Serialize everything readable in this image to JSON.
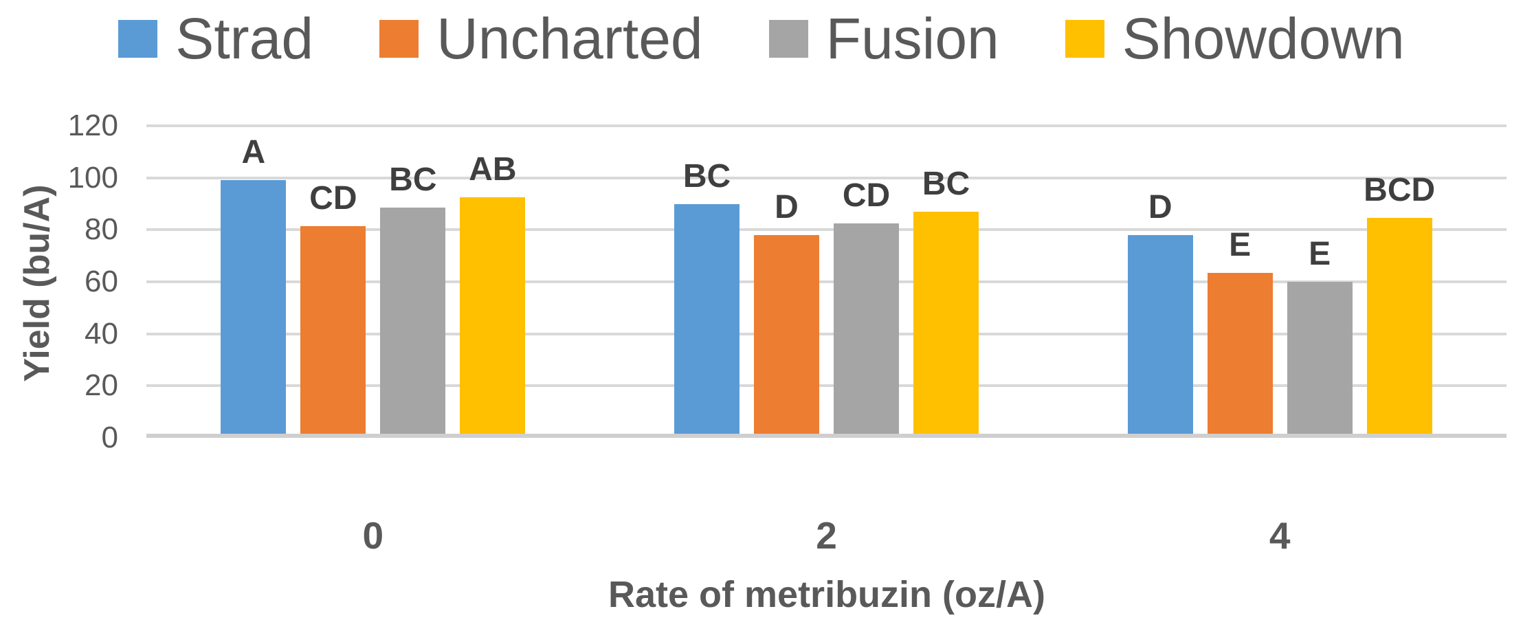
{
  "chart_data": {
    "type": "bar",
    "title": "",
    "categories": [
      "0",
      "2",
      "4"
    ],
    "series": [
      {
        "name": "Strad",
        "color": "#5B9BD5",
        "values": [
          99,
          90,
          78
        ],
        "bar_labels": [
          "A",
          "BC",
          "D"
        ]
      },
      {
        "name": "Uncharted",
        "color": "#ED7D31",
        "values": [
          81.5,
          78,
          63.5
        ],
        "bar_labels": [
          "CD",
          "D",
          "E"
        ]
      },
      {
        "name": "Fusion",
        "color": "#A5A5A5",
        "values": [
          88.5,
          82.5,
          60
        ],
        "bar_labels": [
          "BC",
          "CD",
          "E"
        ]
      },
      {
        "name": "Showdown",
        "color": "#FFC000",
        "values": [
          92.5,
          87,
          84.5
        ],
        "bar_labels": [
          "AB",
          "BC",
          "BCD"
        ]
      }
    ],
    "xlabel": "Rate of metribuzin (oz/A)",
    "ylabel": "Yield (bu/A)",
    "ylim": [
      0,
      120
    ],
    "yticks": [
      0,
      20,
      40,
      60,
      80,
      100,
      120
    ],
    "grid": true,
    "legend_position": "top",
    "colors": {
      "gridline": "#D9D9D9",
      "axis_baseline": "#CFCFCF",
      "tick_label": "#595959",
      "bar_label": "#3F3F3F",
      "legend_text": "#595959"
    }
  }
}
